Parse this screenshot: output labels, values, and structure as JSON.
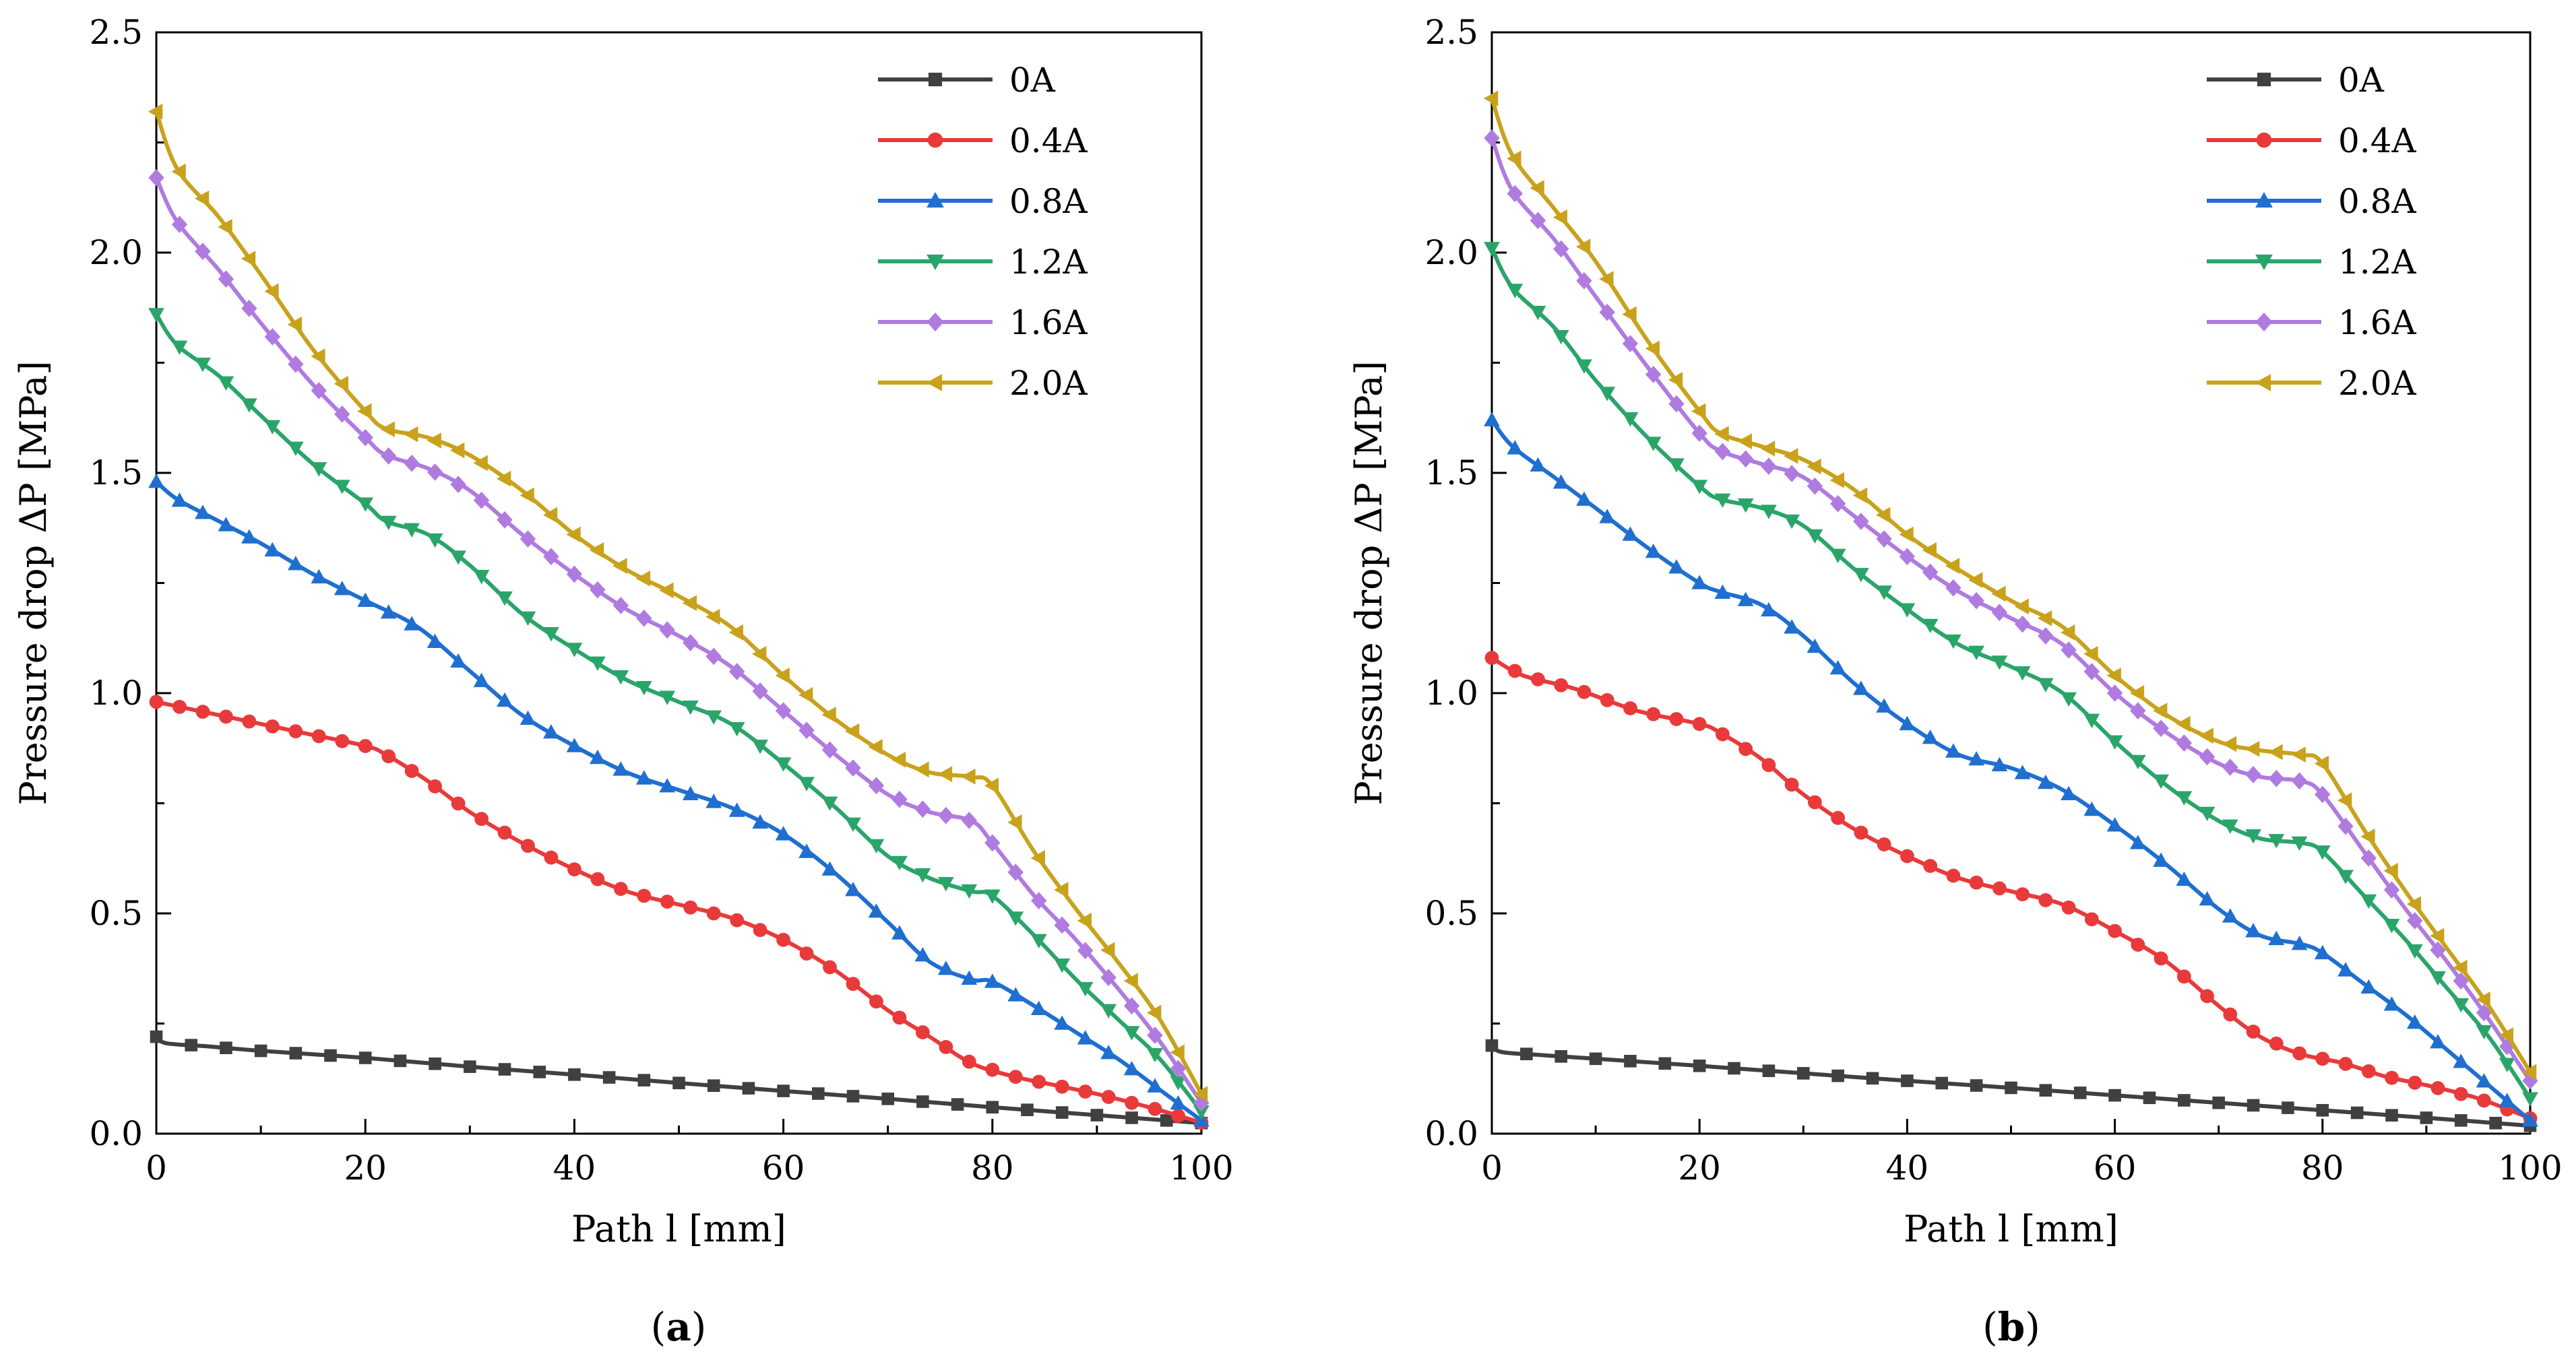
{
  "chart_data": [
    {
      "panel": "a",
      "caption": "(a)",
      "caption_letter": "a",
      "type": "line",
      "xlabel": "Path l [mm]",
      "ylabel": "Pressure drop ΔP [MPa]",
      "xlim": [
        0,
        100
      ],
      "ylim": [
        0,
        2.5
      ],
      "x_ticks": [
        "0",
        "20",
        "40",
        "60",
        "80",
        "100"
      ],
      "y_ticks": [
        "0.0",
        "0.5",
        "1.0",
        "1.5",
        "2.0",
        "2.5"
      ],
      "legend_position": "top-right",
      "series": [
        {
          "name": "0A",
          "marker": "square",
          "color": "#404040",
          "x": [
            0,
            1,
            5,
            10,
            20,
            30,
            40,
            50,
            60,
            70,
            80,
            90,
            100
          ],
          "y": [
            0.22,
            0.205,
            0.198,
            0.188,
            0.172,
            0.152,
            0.134,
            0.115,
            0.097,
            0.079,
            0.06,
            0.042,
            0.024
          ]
        },
        {
          "name": "0.4A",
          "marker": "circle",
          "color": "#e83a3a",
          "x": [
            0,
            3,
            8,
            14,
            20,
            22,
            26,
            30,
            35,
            40,
            45,
            50,
            55,
            60,
            65,
            70,
            74,
            78,
            82,
            86,
            90,
            95,
            100
          ],
          "y": [
            0.98,
            0.965,
            0.94,
            0.91,
            0.88,
            0.86,
            0.8,
            0.73,
            0.66,
            0.6,
            0.55,
            0.52,
            0.49,
            0.44,
            0.37,
            0.28,
            0.22,
            0.16,
            0.13,
            0.11,
            0.09,
            0.06,
            0.025
          ]
        },
        {
          "name": "0.8A",
          "marker": "triangle-up",
          "color": "#1f6fd0",
          "x": [
            0,
            2,
            6,
            10,
            15,
            20,
            25,
            30,
            35,
            40,
            45,
            50,
            55,
            60,
            65,
            70,
            74,
            78,
            80,
            84,
            88,
            92,
            96,
            100
          ],
          "y": [
            1.48,
            1.44,
            1.39,
            1.34,
            1.27,
            1.21,
            1.15,
            1.05,
            0.95,
            0.88,
            0.82,
            0.78,
            0.74,
            0.68,
            0.59,
            0.48,
            0.39,
            0.35,
            0.345,
            0.29,
            0.23,
            0.17,
            0.1,
            0.03
          ]
        },
        {
          "name": "1.2A",
          "marker": "triangle-down",
          "color": "#2aa56a",
          "x": [
            0,
            2,
            6,
            10,
            15,
            20,
            22,
            26,
            30,
            35,
            40,
            45,
            50,
            55,
            60,
            65,
            70,
            74,
            78,
            80,
            84,
            88,
            92,
            96,
            100
          ],
          "y": [
            1.86,
            1.79,
            1.72,
            1.63,
            1.52,
            1.43,
            1.39,
            1.36,
            1.29,
            1.18,
            1.1,
            1.03,
            0.98,
            0.93,
            0.84,
            0.74,
            0.63,
            0.58,
            0.55,
            0.54,
            0.45,
            0.35,
            0.26,
            0.17,
            0.05
          ]
        },
        {
          "name": "1.6A",
          "marker": "diamond",
          "color": "#b07be0",
          "x": [
            0,
            2,
            6,
            10,
            15,
            20,
            22,
            26,
            30,
            35,
            40,
            45,
            50,
            55,
            60,
            65,
            70,
            74,
            78,
            80,
            84,
            88,
            92,
            96,
            100
          ],
          "y": [
            2.17,
            2.07,
            1.96,
            1.84,
            1.7,
            1.58,
            1.54,
            1.51,
            1.46,
            1.36,
            1.27,
            1.19,
            1.13,
            1.06,
            0.96,
            0.86,
            0.77,
            0.73,
            0.71,
            0.66,
            0.54,
            0.44,
            0.33,
            0.21,
            0.07
          ]
        },
        {
          "name": "2.0A",
          "marker": "triangle-left",
          "color": "#c9a21c",
          "x": [
            0,
            2,
            6,
            10,
            15,
            20,
            22,
            26,
            30,
            35,
            40,
            45,
            50,
            55,
            60,
            65,
            70,
            74,
            78,
            80,
            84,
            88,
            92,
            96,
            100
          ],
          "y": [
            2.32,
            2.19,
            2.08,
            1.95,
            1.78,
            1.64,
            1.6,
            1.58,
            1.54,
            1.46,
            1.36,
            1.28,
            1.22,
            1.15,
            1.04,
            0.94,
            0.86,
            0.82,
            0.81,
            0.79,
            0.64,
            0.51,
            0.39,
            0.26,
            0.09
          ]
        }
      ]
    },
    {
      "panel": "b",
      "caption": "(b)",
      "caption_letter": "b",
      "type": "line",
      "xlabel": "Path l [mm]",
      "ylabel": "Pressure drop ΔP [MPa]",
      "xlim": [
        0,
        100
      ],
      "ylim": [
        0,
        2.5
      ],
      "x_ticks": [
        "0",
        "20",
        "40",
        "60",
        "80",
        "100"
      ],
      "y_ticks": [
        "0.0",
        "0.5",
        "1.0",
        "1.5",
        "2.0",
        "2.5"
      ],
      "legend_position": "top-right",
      "series": [
        {
          "name": "0A",
          "marker": "square",
          "color": "#404040",
          "x": [
            0,
            1,
            5,
            10,
            20,
            30,
            40,
            50,
            60,
            70,
            80,
            90,
            100
          ],
          "y": [
            0.2,
            0.185,
            0.178,
            0.17,
            0.154,
            0.137,
            0.12,
            0.104,
            0.087,
            0.07,
            0.053,
            0.036,
            0.018
          ]
        },
        {
          "name": "0.4A",
          "marker": "circle",
          "color": "#e83a3a",
          "x": [
            0,
            3,
            8,
            14,
            20,
            22,
            26,
            30,
            35,
            40,
            45,
            50,
            55,
            60,
            65,
            70,
            74,
            78,
            82,
            86,
            90,
            95,
            100
          ],
          "y": [
            1.08,
            1.04,
            1.01,
            0.96,
            0.93,
            0.91,
            0.85,
            0.77,
            0.69,
            0.63,
            0.58,
            0.55,
            0.52,
            0.46,
            0.39,
            0.29,
            0.22,
            0.18,
            0.16,
            0.13,
            0.11,
            0.08,
            0.035
          ]
        },
        {
          "name": "0.8A",
          "marker": "triangle-up",
          "color": "#1f6fd0",
          "x": [
            0,
            2,
            6,
            10,
            15,
            20,
            22,
            26,
            30,
            35,
            40,
            45,
            50,
            55,
            60,
            65,
            70,
            74,
            78,
            80,
            84,
            88,
            92,
            96,
            100
          ],
          "y": [
            1.62,
            1.56,
            1.49,
            1.42,
            1.33,
            1.25,
            1.23,
            1.2,
            1.13,
            1.02,
            0.93,
            0.86,
            0.83,
            0.78,
            0.7,
            0.61,
            0.51,
            0.45,
            0.43,
            0.41,
            0.34,
            0.27,
            0.19,
            0.11,
            0.03
          ]
        },
        {
          "name": "1.2A",
          "marker": "triangle-down",
          "color": "#2aa56a",
          "x": [
            0,
            2,
            6,
            10,
            15,
            20,
            22,
            26,
            30,
            35,
            40,
            45,
            50,
            55,
            60,
            65,
            70,
            74,
            78,
            80,
            84,
            88,
            92,
            96,
            100
          ],
          "y": [
            2.01,
            1.92,
            1.83,
            1.71,
            1.58,
            1.47,
            1.44,
            1.42,
            1.38,
            1.28,
            1.19,
            1.11,
            1.06,
            1.0,
            0.89,
            0.79,
            0.71,
            0.67,
            0.66,
            0.64,
            0.54,
            0.44,
            0.33,
            0.22,
            0.08
          ]
        },
        {
          "name": "1.6A",
          "marker": "diamond",
          "color": "#b07be0",
          "x": [
            0,
            2,
            6,
            10,
            15,
            20,
            22,
            26,
            30,
            35,
            40,
            45,
            50,
            55,
            60,
            65,
            70,
            74,
            78,
            80,
            84,
            88,
            92,
            96,
            100
          ],
          "y": [
            2.26,
            2.14,
            2.03,
            1.9,
            1.74,
            1.59,
            1.55,
            1.52,
            1.49,
            1.4,
            1.31,
            1.23,
            1.17,
            1.11,
            1.0,
            0.91,
            0.84,
            0.81,
            0.8,
            0.77,
            0.64,
            0.51,
            0.39,
            0.26,
            0.12
          ]
        },
        {
          "name": "2.0A",
          "marker": "triangle-left",
          "color": "#c9a21c",
          "x": [
            0,
            2,
            6,
            10,
            15,
            20,
            22,
            26,
            30,
            35,
            40,
            45,
            50,
            55,
            60,
            65,
            70,
            74,
            78,
            80,
            84,
            88,
            92,
            96,
            100
          ],
          "y": [
            2.35,
            2.22,
            2.1,
            1.98,
            1.8,
            1.64,
            1.59,
            1.56,
            1.53,
            1.46,
            1.36,
            1.28,
            1.21,
            1.15,
            1.04,
            0.95,
            0.89,
            0.87,
            0.86,
            0.84,
            0.69,
            0.55,
            0.42,
            0.29,
            0.14
          ]
        }
      ]
    }
  ]
}
